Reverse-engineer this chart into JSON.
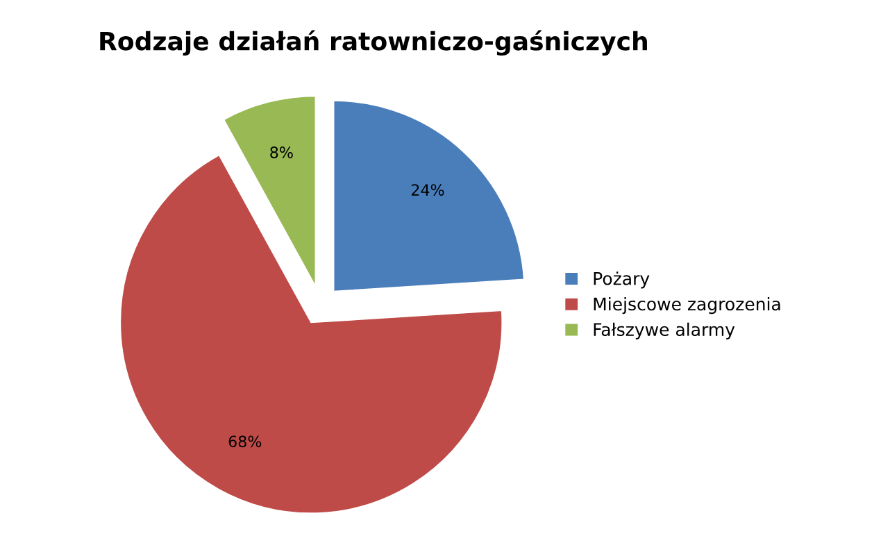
{
  "chart_data": {
    "type": "pie",
    "title": "Rodzaje działań ratowniczo-gaśniczych",
    "categories": [
      "Pożary",
      "Miejscowe zagrozenia",
      "Fałszywe alarmy"
    ],
    "values": [
      24,
      68,
      8
    ],
    "colors": [
      "#4a7ebb",
      "#be4b48",
      "#98b954"
    ],
    "value_labels": [
      "24%",
      "68%",
      "8%"
    ],
    "legend": "right"
  }
}
